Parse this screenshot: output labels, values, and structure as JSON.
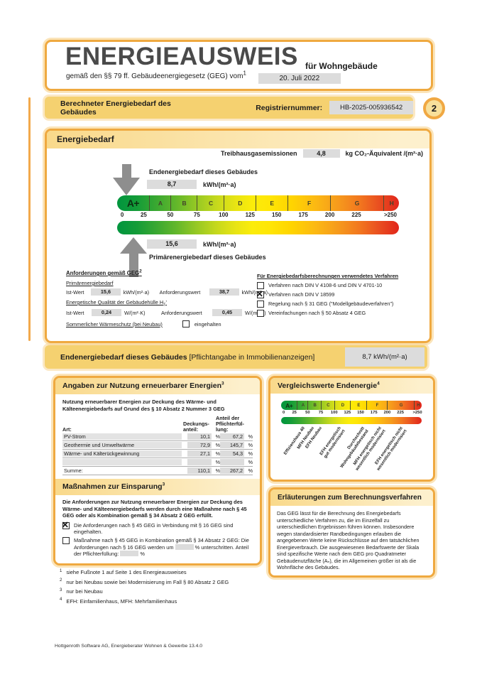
{
  "colors": {
    "accent_orange": "#efa940",
    "banner_yellow": "#f5d170",
    "value_box_gray": "#dcdcdc",
    "scale_green": "#00953e",
    "scale_yellow": "#ffe606",
    "scale_red": "#e1251b",
    "arrow_gray": "#8e8e8e"
  },
  "header": {
    "title": "ENERGIEAUSWEIS",
    "for_label": "für Wohngebäude",
    "law_text": "gemäß den §§ 79 ff. Gebäudeenergiegesetz (GEG) vom",
    "law_sup": "1",
    "date_value": "20. Juli 2022"
  },
  "banner": {
    "title": "Berechneter Energiebedarf des Gebäudes",
    "registry_label": "Registriernummer:",
    "registry_value": "HB-2025-005936542",
    "page_badge": "2"
  },
  "energiebedarf": {
    "title": "Energiebedarf",
    "ghg": {
      "label": "Treibhausgasemissionen",
      "value": "4,8",
      "unit": "kg CO₂-Äquivalent /(m²·a)"
    },
    "end": {
      "label": "Endenergiebedarf dieses Gebäudes",
      "value": "8,7",
      "unit": "kWh/(m²·a)"
    },
    "primary": {
      "label": "Primärenergiebedarf dieses Gebäudes",
      "value": "15,6",
      "unit": "kWh/(m²·a)"
    },
    "anforderungen": {
      "heading": "Anforderungen gemäß GEG",
      "heading_sup": "2",
      "primaer": {
        "heading": "Primärenergiebedarf",
        "ist_label": "Ist-Wert",
        "ist_value": "15,6",
        "ist_unit": "kWh/(m²·a)",
        "anf_label": "Anforderungswert",
        "anf_value": "38,7",
        "anf_unit": "kWh/(m²·a)"
      },
      "huelle": {
        "heading_pre": "Energetische Qualität der Gebäudehülle H",
        "heading_sub": "T",
        "heading_post": "'",
        "ist_label": "Ist-Wert",
        "ist_value": "0,24",
        "ist_unit": "W/(m²·K)",
        "anf_label": "Anforderungswert",
        "anf_value": "0,45",
        "anf_unit": "W/(m²·K)"
      },
      "sommer": {
        "heading": "Sommerlicher Wärmeschutz (bei Neubau)",
        "checkbox_label": "eingehalten",
        "checked": false
      }
    },
    "verfahren": {
      "heading": "Für Energiebedarfsberechnungen verwendetes Verfahren",
      "items": [
        {
          "label": "Verfahren nach DIN V 4108-6 und DIN V 4701-10",
          "checked": false
        },
        {
          "label": "Verfahren nach DIN V 18599",
          "checked": true
        },
        {
          "label": "Regelung nach § 31 GEG (\"Modellgebäudeverfahren\")",
          "checked": false
        },
        {
          "label": "Vereinfachungen nach § 50 Absatz 4 GEG",
          "checked": false
        }
      ]
    }
  },
  "end_banner": {
    "title_bold": "Endenergiebedarf dieses Gebäudes",
    "title_normal": " [Pflichtangabe in Immobilienanzeigen]",
    "value": "8,7 kWh/(m²·a)"
  },
  "erneuerbare": {
    "title": "Angaben zur Nutzung erneuerbarer Energien",
    "title_sup": "3",
    "intro": "Nutzung erneuerbarer Energien zur Deckung des Wärme- und Kälteenergiebedarfs auf Grund des § 10 Absatz 2 Nummer 3 GEG",
    "col_art": "Art:",
    "col_deckung": "Deckungs-\nanteil:",
    "col_pflicht": "Anteil der\nPflichterfül-\nlung:",
    "percent": "%",
    "rows": [
      {
        "art": "PV-Strom",
        "deckung": "10,1",
        "pflicht": "67,2",
        "sum": false
      },
      {
        "art": "Geothermie und Umweltwärme",
        "deckung": "72,9",
        "pflicht": "145,7",
        "sum": false
      },
      {
        "art": "Wärme- und Kälterückgewinnung",
        "deckung": "27,1",
        "pflicht": "54,3",
        "sum": false
      },
      {
        "art": "",
        "deckung": "",
        "pflicht": "",
        "sum": false
      },
      {
        "art": "Summe:",
        "deckung": "110,1",
        "pflicht": "267,2",
        "sum": true
      }
    ]
  },
  "massnahmen": {
    "title": "Maßnahmen zur Einsparung",
    "title_sup": "3",
    "intro": "Die Anforderungen zur Nutzung erneuerbarer Energien zur Deck­ung des Wärme- und Kälteenergiebedarfs werden durch eine Maß­nahme nach § 45 GEG oder als Kombination gemäß § 34 Absatz 2 GEG erfüllt.",
    "items": [
      {
        "checked": true,
        "text": "Die Anforderungen nach § 45 GEG in Verbindung mit § 16 GEG sind eingehalten."
      },
      {
        "checked": false,
        "text": "Maßnahme nach § 45 GEG in Kombination gemäß § 34 Absatz 2 GEG: Die Anforderungen nach § 16 GEG werden um [[box]] % unterschritten. Anteil der Pflichterfüllung: [[box]] %"
      }
    ]
  },
  "vergleichswerte": {
    "title": "Vergleichswerte Endenergie",
    "title_sup": "4"
  },
  "erlaeuterungen": {
    "title": "Erläuterungen zum Berechnungsverfahren",
    "text": "Das GEG lässt für die Berechnung des Energiebedarfs unterschiedliche Verfahren zu, die im Einzelfall zu unterschiedlichen Ergebnissen führen können. Insbesondere wegen standardisierter Randbedingungen erlauben die angegebenen Werte keine Rückschlüsse auf den tatsächlichen Energieverbrauch. Die ausgewiesenen Bedarfswerte der Skala sind spezifische Werte nach dem GEG pro Quadratmeter Gebäudenutzfläche (Aₙ), die im Allgemeinen größer ist als die Wohnfläche des Gebäudes."
  },
  "footnotes": [
    {
      "sup": "1",
      "text": "siehe Fußnote 1 auf Seite 1 des Energieausweises"
    },
    {
      "sup": "2",
      "text": "nur bei Neubau sowie bei Modernisierung im Fall § 80 Absatz 2 GEG"
    },
    {
      "sup": "3",
      "text": "nur bei Neubau"
    },
    {
      "sup": "4",
      "text": "EFH: Einfamilienhaus, MFH: Mehrfamilienhaus"
    }
  ],
  "footer": "Hottgenroth Software AG, Energieberater Wohnen & Gewerbe 13.4.0",
  "chart_data": [
    {
      "type": "scale",
      "title": "Energiebedarf kWh/(m²·a)",
      "max": 265,
      "bands": [
        {
          "label": "A+",
          "from": 0,
          "to": 30
        },
        {
          "label": "A",
          "from": 30,
          "to": 50
        },
        {
          "label": "B",
          "from": 50,
          "to": 75
        },
        {
          "label": "C",
          "from": 75,
          "to": 100
        },
        {
          "label": "D",
          "from": 100,
          "to": 130
        },
        {
          "label": "E",
          "from": 130,
          "to": 160
        },
        {
          "label": "F",
          "from": 160,
          "to": 200
        },
        {
          "label": "G",
          "from": 200,
          "to": 250
        },
        {
          "label": "H",
          "from": 250,
          "to": 265
        }
      ],
      "ticks": [
        "0",
        "25",
        "50",
        "75",
        "100",
        "125",
        "150",
        "175",
        "200",
        "225",
        ">250"
      ],
      "tick_values": [
        0,
        25,
        50,
        75,
        100,
        125,
        150,
        175,
        200,
        225,
        257
      ],
      "markers": [
        {
          "label": "Endenergiebedarf dieses Gebäudes",
          "value": 8.7
        },
        {
          "label": "Primärenergiebedarf dieses Gebäudes",
          "value": 15.6
        }
      ]
    },
    {
      "type": "scale",
      "title": "Vergleichswerte Endenergie",
      "axis_same_as_main": true,
      "reference_points": [
        {
          "label": "Effizienzhaus 40",
          "value": 40
        },
        {
          "label": "MFH Neubau",
          "value": 57
        },
        {
          "label": "EFH Neubau",
          "value": 72
        },
        {
          "label": "EFH energetisch\ngut modernisiert",
          "value": 108
        },
        {
          "label": "Durchschnitt\nWohngebäudebestand",
          "value": 152
        },
        {
          "label": "MFH energetisch nicht\nwesentlich modernisiert",
          "value": 185
        },
        {
          "label": "EFH energetisch nicht\nwesentlich modernisiert",
          "value": 225
        }
      ]
    }
  ]
}
